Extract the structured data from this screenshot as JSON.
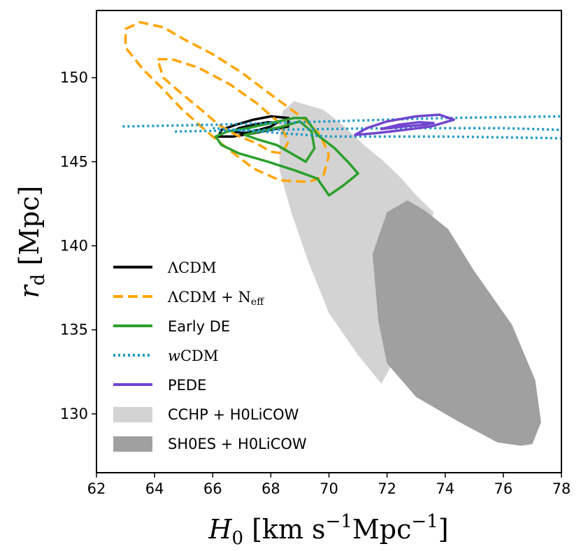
{
  "chart_data": {
    "type": "contour",
    "xlabel": {
      "main": "H",
      "sub": "0",
      "units": "[km s",
      "sup1": "−1",
      "mid": "Mpc",
      "sup2": "−1",
      "close": "]"
    },
    "ylabel": {
      "main": "r",
      "sub": "d",
      "units": "[Mpc]"
    },
    "xlim": [
      62,
      78
    ],
    "ylim": [
      126.5,
      154
    ],
    "xticks": [
      62,
      64,
      66,
      68,
      70,
      72,
      74,
      76,
      78
    ],
    "yticks": [
      130,
      135,
      140,
      145,
      150
    ],
    "grid": false,
    "legend_position": "lower-left",
    "series": [
      {
        "name": "ΛCDM",
        "color": "#000000",
        "style": "solid",
        "contours": [
          [
            [
              67.1,
              146.7
            ],
            [
              67.6,
              146.9
            ],
            [
              68.0,
              147.1
            ],
            [
              68.2,
              147.3
            ],
            [
              67.9,
              147.35
            ],
            [
              67.4,
              147.2
            ],
            [
              66.9,
              147.0
            ],
            [
              66.7,
              146.8
            ],
            [
              67.1,
              146.7
            ]
          ],
          [
            [
              66.2,
              146.5
            ],
            [
              66.7,
              146.5
            ],
            [
              67.4,
              146.7
            ],
            [
              68.0,
              146.9
            ],
            [
              68.6,
              147.1
            ],
            [
              68.6,
              147.6
            ],
            [
              68.0,
              147.7
            ],
            [
              67.4,
              147.5
            ],
            [
              66.8,
              147.2
            ],
            [
              66.3,
              146.9
            ],
            [
              66.2,
              146.5
            ]
          ]
        ]
      },
      {
        "name": "ΛCDM + N_eff",
        "label_main": "ΛCDM + N",
        "label_sub": "eff",
        "color": "#ffa500",
        "style": "dashed",
        "contours": [
          [
            [
              64.1,
              151.1
            ],
            [
              64.6,
              151.1
            ],
            [
              65.5,
              150.6
            ],
            [
              66.6,
              149.6
            ],
            [
              67.5,
              148.5
            ],
            [
              68.3,
              147.3
            ],
            [
              68.6,
              146.2
            ],
            [
              68.4,
              145.5
            ],
            [
              68.0,
              145.6
            ],
            [
              67.5,
              146.1
            ],
            [
              66.8,
              146.6
            ],
            [
              66.2,
              147.2
            ],
            [
              65.6,
              148.1
            ],
            [
              64.9,
              149.1
            ],
            [
              64.3,
              150.0
            ],
            [
              64.1,
              151.1
            ]
          ],
          [
            [
              63.0,
              152.9
            ],
            [
              63.5,
              153.3
            ],
            [
              64.3,
              153.0
            ],
            [
              65.0,
              152.3
            ],
            [
              66.0,
              151.4
            ],
            [
              67.0,
              150.3
            ],
            [
              68.0,
              149.0
            ],
            [
              69.1,
              147.6
            ],
            [
              69.7,
              146.6
            ],
            [
              70.0,
              145.4
            ],
            [
              69.8,
              144.1
            ],
            [
              69.3,
              143.8
            ],
            [
              68.3,
              143.9
            ],
            [
              67.4,
              144.6
            ],
            [
              66.8,
              145.4
            ],
            [
              66.2,
              146.2
            ],
            [
              65.6,
              147.1
            ],
            [
              64.9,
              148.2
            ],
            [
              64.3,
              149.3
            ],
            [
              63.6,
              150.5
            ],
            [
              63.0,
              151.8
            ],
            [
              63.0,
              152.9
            ]
          ]
        ]
      },
      {
        "name": "Early DE",
        "color": "#2ca02c",
        "style": "solid",
        "contours": [
          [
            [
              67.1,
              146.6
            ],
            [
              67.6,
              146.3
            ],
            [
              68.2,
              146.0
            ],
            [
              68.8,
              145.4
            ],
            [
              69.2,
              145.0
            ],
            [
              69.5,
              145.8
            ],
            [
              69.4,
              146.8
            ],
            [
              69.0,
              147.4
            ],
            [
              68.4,
              147.1
            ],
            [
              67.6,
              146.8
            ],
            [
              67.1,
              146.6
            ]
          ],
          [
            [
              66.1,
              146.5
            ],
            [
              66.3,
              146.0
            ],
            [
              66.9,
              145.5
            ],
            [
              67.9,
              145.0
            ],
            [
              68.8,
              144.5
            ],
            [
              69.6,
              144.0
            ],
            [
              70.0,
              143.0
            ],
            [
              70.5,
              143.6
            ],
            [
              71.0,
              144.3
            ],
            [
              70.7,
              144.9
            ],
            [
              70.2,
              145.8
            ],
            [
              69.6,
              146.6
            ],
            [
              69.2,
              147.6
            ],
            [
              68.8,
              147.6
            ],
            [
              68.0,
              147.3
            ],
            [
              67.2,
              147.0
            ],
            [
              66.5,
              146.8
            ],
            [
              66.1,
              146.5
            ]
          ]
        ]
      },
      {
        "name": "wCDM",
        "label_italic": "w",
        "label_rest": "CDM",
        "color": "#1f9ac9",
        "style": "dotted",
        "contours": [
          [
            [
              64.7,
              146.8
            ],
            [
              68.0,
              146.9
            ],
            [
              72.0,
              147.0
            ],
            [
              76.0,
              147.0
            ],
            [
              78.0,
              146.9
            ]
          ],
          [
            [
              62.9,
              147.1
            ],
            [
              66.0,
              147.2
            ],
            [
              70.0,
              147.4
            ],
            [
              74.0,
              147.6
            ],
            [
              78.0,
              147.7
            ]
          ],
          [
            [
              66.0,
              147.0
            ],
            [
              70.0,
              146.5
            ],
            [
              74.0,
              146.5
            ],
            [
              78.0,
              146.4
            ]
          ]
        ]
      },
      {
        "name": "PEDE",
        "color": "#7144cf",
        "style": "solid",
        "contours": [
          [
            [
              71.8,
              146.95
            ],
            [
              72.6,
              147.1
            ],
            [
              73.3,
              147.2
            ],
            [
              73.6,
              147.3
            ],
            [
              73.1,
              147.35
            ],
            [
              72.4,
              147.2
            ],
            [
              71.8,
              146.95
            ]
          ],
          [
            [
              70.9,
              146.6
            ],
            [
              71.6,
              146.7
            ],
            [
              72.6,
              146.9
            ],
            [
              73.5,
              147.1
            ],
            [
              74.3,
              147.5
            ],
            [
              73.8,
              147.8
            ],
            [
              73.0,
              147.7
            ],
            [
              72.0,
              147.4
            ],
            [
              71.3,
              147.0
            ],
            [
              70.9,
              146.6
            ]
          ]
        ]
      }
    ],
    "regions": [
      {
        "name": "CCHP + H0LiCOW",
        "color": "#d3d3d3",
        "polygon": [
          [
            68.8,
            148.6
          ],
          [
            69.8,
            148.1
          ],
          [
            70.6,
            147.0
          ],
          [
            71.2,
            146.0
          ],
          [
            71.9,
            145.0
          ],
          [
            72.5,
            144.0
          ],
          [
            73.0,
            143.0
          ],
          [
            73.6,
            142.0
          ],
          [
            73.4,
            140.5
          ],
          [
            72.8,
            137.0
          ],
          [
            72.2,
            133.0
          ],
          [
            71.8,
            131.8
          ],
          [
            71.0,
            133.5
          ],
          [
            70.0,
            136.0
          ],
          [
            69.3,
            139.0
          ],
          [
            68.7,
            142.0
          ],
          [
            68.3,
            144.5
          ],
          [
            68.3,
            146.5
          ],
          [
            68.4,
            148.0
          ],
          [
            68.8,
            148.6
          ]
        ]
      },
      {
        "name": "SH0ES + H0LiCOW",
        "color": "#a0a0a0",
        "polygon": [
          [
            71.5,
            139.5
          ],
          [
            72.0,
            142.0
          ],
          [
            72.7,
            142.7
          ],
          [
            73.3,
            142.1
          ],
          [
            74.1,
            141.0
          ],
          [
            75.0,
            138.5
          ],
          [
            76.3,
            135.3
          ],
          [
            77.1,
            132.0
          ],
          [
            77.3,
            129.5
          ],
          [
            77.0,
            128.2
          ],
          [
            76.6,
            128.1
          ],
          [
            75.8,
            128.3
          ],
          [
            74.5,
            129.5
          ],
          [
            73.0,
            131.0
          ],
          [
            72.0,
            133.0
          ],
          [
            71.7,
            135.5
          ],
          [
            71.5,
            139.5
          ]
        ]
      }
    ]
  }
}
